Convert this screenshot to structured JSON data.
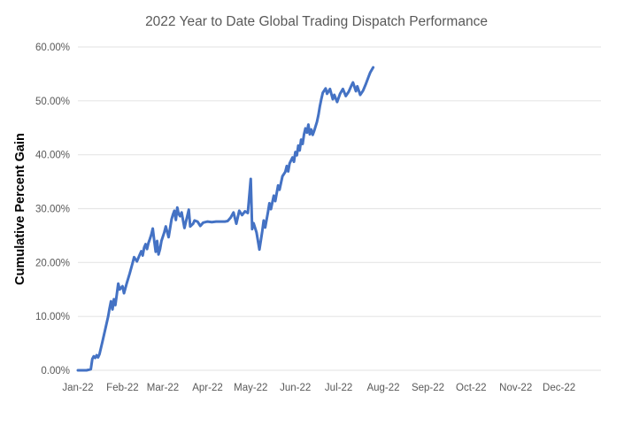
{
  "chart_data": {
    "type": "line",
    "title": "2022 Year to Date Global Trading Dispatch Performance",
    "ylabel": "Cumulative Percent Gain",
    "xlabel": "",
    "legend": "none",
    "grid": true,
    "x_tick_labels": [
      "Jan-22",
      "Feb-22",
      "Mar-22",
      "Apr-22",
      "May-22",
      "Jun-22",
      "Jul-22",
      "Aug-22",
      "Sep-22",
      "Oct-22",
      "Nov-22",
      "Dec-22"
    ],
    "y_tick_labels": [
      "0.00%",
      "10.00%",
      "20.00%",
      "30.00%",
      "40.00%",
      "50.00%",
      "60.00%"
    ],
    "y_tick_values": [
      0,
      10,
      20,
      30,
      40,
      50,
      60
    ],
    "ylim": [
      0,
      60
    ],
    "x_axis_note": "time axis covers full year 2022; data plotted Jan 1 through ~Jul 25",
    "colors": {
      "line": "#4472C4",
      "title_text": "#595959",
      "tick_text": "#595959",
      "gridline": "#E6E6E6",
      "axis_title_text": "#000000",
      "background": "#FFFFFF"
    },
    "series": [
      {
        "name": "Cumulative Percent Gain",
        "color": "#4472C4",
        "x_unit": "days since 2022-01-01",
        "y_unit": "percent",
        "points": [
          [
            0,
            0
          ],
          [
            3,
            0
          ],
          [
            6,
            0
          ],
          [
            9,
            0.2
          ],
          [
            10,
            2.1
          ],
          [
            11,
            2.6
          ],
          [
            12,
            2.3
          ],
          [
            13,
            2.8
          ],
          [
            14,
            2.4
          ],
          [
            15,
            3.0
          ],
          [
            17,
            5.3
          ],
          [
            19,
            7.6
          ],
          [
            21,
            10.0
          ],
          [
            22,
            11.5
          ],
          [
            23,
            12.8
          ],
          [
            24,
            11.3
          ],
          [
            25,
            13.2
          ],
          [
            26,
            12.1
          ],
          [
            27,
            14.0
          ],
          [
            28,
            16.1
          ],
          [
            29,
            15.0
          ],
          [
            31,
            15.6
          ],
          [
            32,
            14.3
          ],
          [
            34,
            16.2
          ],
          [
            36,
            18.0
          ],
          [
            38,
            19.9
          ],
          [
            39,
            21.0
          ],
          [
            41,
            20.2
          ],
          [
            43,
            21.5
          ],
          [
            44,
            22.1
          ],
          [
            45,
            21.3
          ],
          [
            46,
            22.8
          ],
          [
            47,
            23.4
          ],
          [
            48,
            22.5
          ],
          [
            49,
            23.6
          ],
          [
            50,
            24.4
          ],
          [
            51,
            25.2
          ],
          [
            52,
            26.3
          ],
          [
            53,
            24.0
          ],
          [
            54,
            22.0
          ],
          [
            55,
            24.0
          ],
          [
            56,
            21.5
          ],
          [
            57,
            22.5
          ],
          [
            58,
            24.0
          ],
          [
            60,
            25.6
          ],
          [
            61,
            26.7
          ],
          [
            63,
            24.7
          ],
          [
            65,
            28.0
          ],
          [
            66,
            28.9
          ],
          [
            67,
            29.6
          ],
          [
            68,
            27.9
          ],
          [
            69,
            30.2
          ],
          [
            70,
            29.0
          ],
          [
            71,
            28.6
          ],
          [
            72,
            29.3
          ],
          [
            74,
            26.4
          ],
          [
            75,
            27.6
          ],
          [
            77,
            29.8
          ],
          [
            78,
            26.7
          ],
          [
            80,
            27.2
          ],
          [
            81,
            27.8
          ],
          [
            83,
            27.6
          ],
          [
            85,
            26.8
          ],
          [
            87,
            27.4
          ],
          [
            90,
            27.6
          ],
          [
            93,
            27.5
          ],
          [
            96,
            27.6
          ],
          [
            99,
            27.6
          ],
          [
            102,
            27.6
          ],
          [
            104,
            27.7
          ],
          [
            106,
            28.3
          ],
          [
            108,
            29.3
          ],
          [
            110,
            27.2
          ],
          [
            112,
            29.6
          ],
          [
            114,
            28.8
          ],
          [
            116,
            29.5
          ],
          [
            118,
            29.2
          ],
          [
            120,
            35.5
          ],
          [
            121,
            26.2
          ],
          [
            122,
            27.3
          ],
          [
            124,
            25.6
          ],
          [
            126,
            22.4
          ],
          [
            128,
            25.8
          ],
          [
            129,
            27.8
          ],
          [
            130,
            26.5
          ],
          [
            132,
            29.4
          ],
          [
            133,
            31.0
          ],
          [
            134,
            29.9
          ],
          [
            136,
            32.4
          ],
          [
            137,
            31.4
          ],
          [
            139,
            34.3
          ],
          [
            140,
            33.5
          ],
          [
            142,
            36.0
          ],
          [
            144,
            36.8
          ],
          [
            145,
            37.9
          ],
          [
            146,
            36.9
          ],
          [
            147,
            38.4
          ],
          [
            149,
            39.5
          ],
          [
            150,
            38.7
          ],
          [
            151,
            40.5
          ],
          [
            152,
            39.9
          ],
          [
            153,
            41.7
          ],
          [
            154,
            40.8
          ],
          [
            155,
            42.8
          ],
          [
            156,
            42.0
          ],
          [
            157,
            43.8
          ],
          [
            158,
            44.9
          ],
          [
            159,
            44.1
          ],
          [
            160,
            45.6
          ],
          [
            161,
            43.8
          ],
          [
            162,
            44.7
          ],
          [
            163,
            43.7
          ],
          [
            164,
            44.4
          ],
          [
            166,
            46.1
          ],
          [
            167,
            47.4
          ],
          [
            168,
            49.0
          ],
          [
            169,
            50.3
          ],
          [
            170,
            51.5
          ],
          [
            172,
            52.3
          ],
          [
            173,
            51.3
          ],
          [
            175,
            52.2
          ],
          [
            177,
            50.3
          ],
          [
            178,
            51.1
          ],
          [
            180,
            49.8
          ],
          [
            182,
            51.3
          ],
          [
            184,
            52.2
          ],
          [
            186,
            50.9
          ],
          [
            188,
            51.7
          ],
          [
            190,
            52.9
          ],
          [
            191,
            53.4
          ],
          [
            193,
            51.8
          ],
          [
            194,
            52.7
          ],
          [
            196,
            51.1
          ],
          [
            198,
            51.9
          ],
          [
            200,
            53.2
          ],
          [
            202,
            54.6
          ],
          [
            203,
            55.3
          ],
          [
            205,
            56.2
          ]
        ]
      }
    ]
  }
}
